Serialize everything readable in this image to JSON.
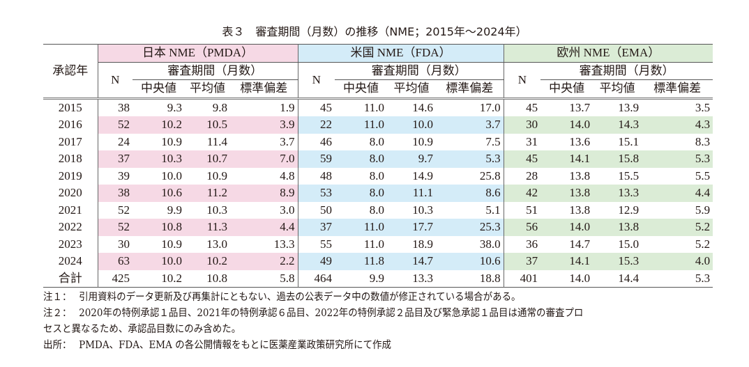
{
  "title": "表３　審査期間（月数）の推移（NME；2015年〜2024年）",
  "header": {
    "year_col": "承認年",
    "groups": [
      "日本 NME（PMDA）",
      "米国 NME（FDA）",
      "欧州 NME（EMA）"
    ],
    "n": "N",
    "period": "審査期間（月数）",
    "stats": [
      "中央値",
      "平均値",
      "標準偏差"
    ]
  },
  "colors": {
    "japan": "#f6d9e5",
    "us": "#d4ecf8",
    "eu": "#dbecd6"
  },
  "rows": [
    {
      "year": "2015",
      "jp": [
        "38",
        "9.3",
        "9.8",
        "1.9"
      ],
      "us": [
        "45",
        "11.0",
        "14.6",
        "17.0"
      ],
      "eu": [
        "45",
        "13.7",
        "13.9",
        "3.5"
      ]
    },
    {
      "year": "2016",
      "jp": [
        "52",
        "10.2",
        "10.5",
        "3.9"
      ],
      "us": [
        "22",
        "11.0",
        "10.0",
        "3.7"
      ],
      "eu": [
        "30",
        "14.0",
        "14.3",
        "4.3"
      ]
    },
    {
      "year": "2017",
      "jp": [
        "24",
        "10.9",
        "11.4",
        "3.7"
      ],
      "us": [
        "46",
        "8.0",
        "10.9",
        "7.5"
      ],
      "eu": [
        "31",
        "13.6",
        "15.1",
        "8.3"
      ]
    },
    {
      "year": "2018",
      "jp": [
        "37",
        "10.3",
        "10.7",
        "7.0"
      ],
      "us": [
        "59",
        "8.0",
        "9.7",
        "5.3"
      ],
      "eu": [
        "45",
        "14.1",
        "15.8",
        "5.3"
      ]
    },
    {
      "year": "2019",
      "jp": [
        "39",
        "10.0",
        "10.9",
        "4.8"
      ],
      "us": [
        "48",
        "8.0",
        "14.9",
        "25.8"
      ],
      "eu": [
        "28",
        "13.8",
        "15.5",
        "5.5"
      ]
    },
    {
      "year": "2020",
      "jp": [
        "38",
        "10.6",
        "11.2",
        "8.9"
      ],
      "us": [
        "53",
        "8.0",
        "11.1",
        "8.6"
      ],
      "eu": [
        "42",
        "13.8",
        "13.3",
        "4.4"
      ]
    },
    {
      "year": "2021",
      "jp": [
        "52",
        "9.9",
        "10.3",
        "3.0"
      ],
      "us": [
        "50",
        "8.0",
        "10.3",
        "5.1"
      ],
      "eu": [
        "51",
        "13.8",
        "12.9",
        "5.9"
      ]
    },
    {
      "year": "2022",
      "jp": [
        "52",
        "10.8",
        "11.3",
        "4.4"
      ],
      "us": [
        "37",
        "11.0",
        "17.7",
        "25.3"
      ],
      "eu": [
        "56",
        "14.0",
        "13.8",
        "5.2"
      ]
    },
    {
      "year": "2023",
      "jp": [
        "30",
        "10.9",
        "13.0",
        "13.3"
      ],
      "us": [
        "55",
        "11.0",
        "18.9",
        "38.0"
      ],
      "eu": [
        "36",
        "14.7",
        "15.0",
        "5.2"
      ]
    },
    {
      "year": "2024",
      "jp": [
        "63",
        "10.0",
        "10.2",
        "2.2"
      ],
      "us": [
        "49",
        "11.8",
        "14.7",
        "10.6"
      ],
      "eu": [
        "37",
        "14.1",
        "15.3",
        "4.0"
      ]
    },
    {
      "year": "合計",
      "jp": [
        "425",
        "10.2",
        "10.8",
        "5.8"
      ],
      "us": [
        "464",
        "9.9",
        "13.3",
        "18.8"
      ],
      "eu": [
        "401",
        "14.0",
        "14.4",
        "5.3"
      ]
    }
  ],
  "notes": [
    {
      "key": "注１：",
      "text": "引用資料のデータ更新及び再集計にともない、過去の公表データ中の数値が修正されている場合がある。"
    },
    {
      "key": "注２：",
      "text": "2020年の特例承認１品目、2021年の特例承認６品目、2022年の特例承認２品目及び緊急承認１品目は通常の審査プロ",
      "cont": "セスと異なるため、承認品目数にのみ含めた。"
    },
    {
      "key": "出所：",
      "text": "PMDA、FDA、EMA の各公開情報をもとに医薬産業政策研究所にて作成"
    }
  ]
}
